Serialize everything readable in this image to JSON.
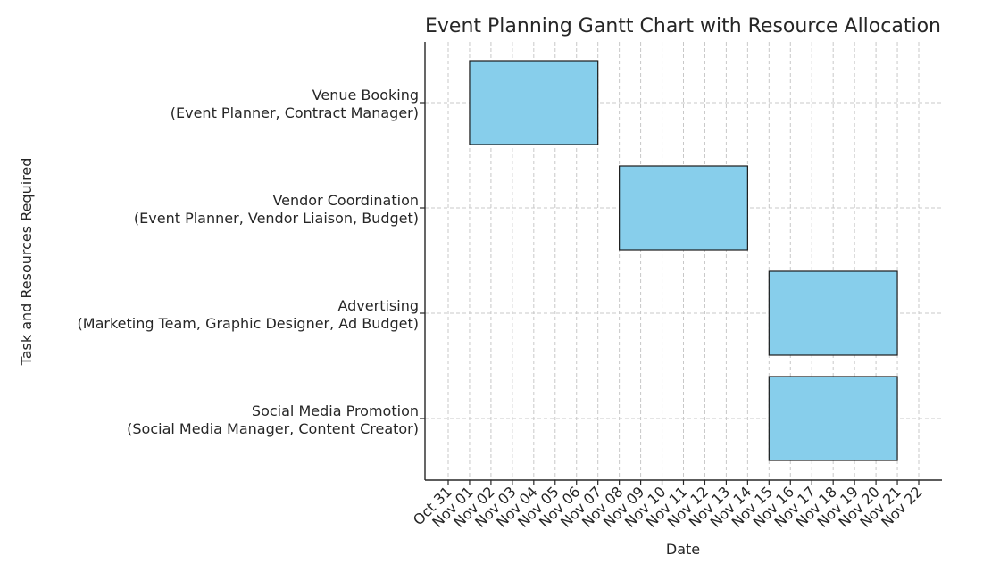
{
  "chart_data": {
    "type": "gantt",
    "title": "Event Planning Gantt Chart with Resource Allocation",
    "xlabel": "Date",
    "ylabel": "Task and Resources Required",
    "x_ticks": [
      "Oct 31",
      "Nov 01",
      "Nov 02",
      "Nov 03",
      "Nov 04",
      "Nov 05",
      "Nov 06",
      "Nov 07",
      "Nov 08",
      "Nov 09",
      "Nov 10",
      "Nov 11",
      "Nov 12",
      "Nov 13",
      "Nov 14",
      "Nov 15",
      "Nov 16",
      "Nov 17",
      "Nov 18",
      "Nov 19",
      "Nov 20",
      "Nov 21",
      "Nov 22"
    ],
    "xlim": [
      "Oct 31",
      "Nov 22"
    ],
    "grid": true,
    "bar_color": "#87ceeb",
    "tasks": [
      {
        "task": "Venue Booking",
        "resources": "(Event Planner, Contract Manager)",
        "start": "Nov 01",
        "end": "Nov 07"
      },
      {
        "task": "Vendor Coordination",
        "resources": "(Event Planner, Vendor Liaison, Budget)",
        "start": "Nov 08",
        "end": "Nov 14"
      },
      {
        "task": "Advertising",
        "resources": "(Marketing Team, Graphic Designer, Ad Budget)",
        "start": "Nov 15",
        "end": "Nov 21"
      },
      {
        "task": "Social Media Promotion",
        "resources": "(Social Media Manager, Content Creator)",
        "start": "Nov 15",
        "end": "Nov 21"
      }
    ]
  }
}
